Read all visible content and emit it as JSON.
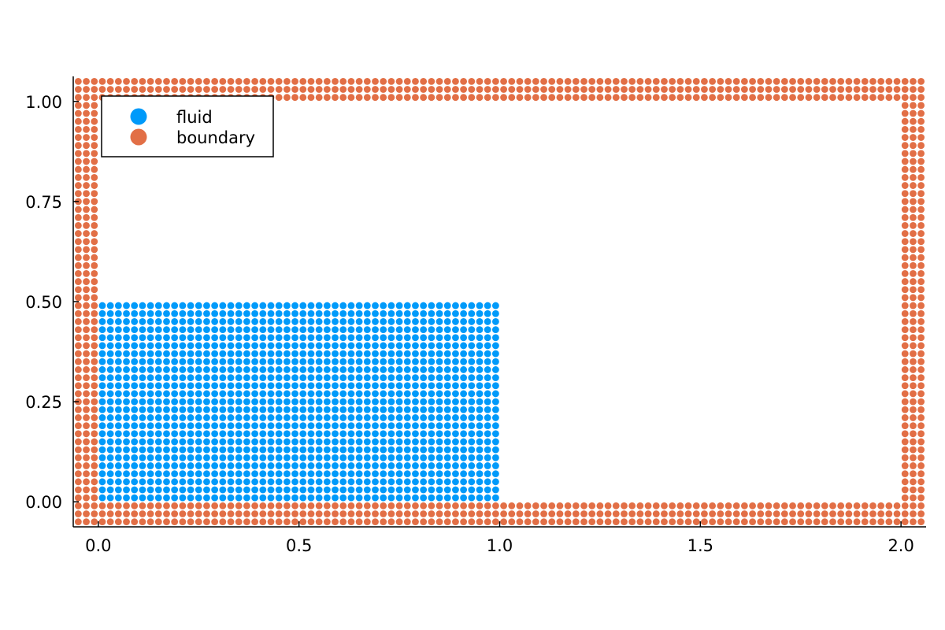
{
  "chart_data": {
    "type": "scatter",
    "title": "",
    "xlabel": "",
    "ylabel": "",
    "xlim": [
      -0.0625,
      2.0625
    ],
    "ylim": [
      -0.0625,
      1.0625
    ],
    "x_ticks": [
      {
        "value": 0.0,
        "label": "0.0"
      },
      {
        "value": 0.5,
        "label": "0.5"
      },
      {
        "value": 1.0,
        "label": "1.0"
      },
      {
        "value": 1.5,
        "label": "1.5"
      },
      {
        "value": 2.0,
        "label": "2.0"
      }
    ],
    "y_ticks": [
      {
        "value": 0.0,
        "label": "0.00"
      },
      {
        "value": 0.25,
        "label": "0.25"
      },
      {
        "value": 0.5,
        "label": "0.50"
      },
      {
        "value": 0.75,
        "label": "0.75"
      },
      {
        "value": 1.0,
        "label": "1.00"
      }
    ],
    "grid": false,
    "legend_position": "top-left",
    "series": [
      {
        "name": "fluid",
        "color": "#009AFA",
        "region": {
          "x_range": [
            0.01,
            0.99
          ],
          "y_range": [
            0.01,
            0.49
          ],
          "spacing": 0.02
        }
      },
      {
        "name": "boundary",
        "color": "#E26F46",
        "regions": [
          {
            "x_range": [
              -0.05,
              2.05
            ],
            "y_range": [
              -0.05,
              -0.01
            ],
            "spacing": 0.02
          },
          {
            "x_range": [
              -0.05,
              2.05
            ],
            "y_range": [
              1.01,
              1.05
            ],
            "spacing": 0.02
          },
          {
            "x_range": [
              -0.05,
              -0.01
            ],
            "y_range": [
              0.01,
              0.99
            ],
            "spacing": 0.02
          },
          {
            "x_range": [
              2.01,
              2.05
            ],
            "y_range": [
              0.01,
              0.99
            ],
            "spacing": 0.02
          }
        ]
      }
    ]
  }
}
